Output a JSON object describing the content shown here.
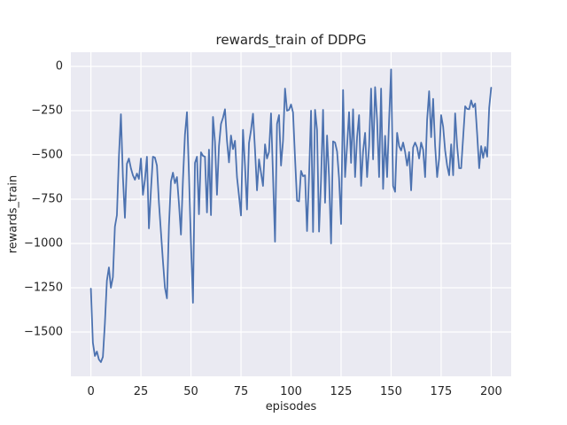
{
  "figure": {
    "title": "rewards_train of DDPG",
    "xlabel": "episodes",
    "ylabel": "rewards_train"
  },
  "colors": {
    "figure_bg": "#ffffff",
    "axes_bg": "#eaeaf2",
    "grid": "#ffffff",
    "text": "#262626",
    "line": "#4c72b0"
  },
  "chart_data": {
    "type": "line",
    "title": "rewards_train of DDPG",
    "xlabel": "episodes",
    "ylabel": "rewards_train",
    "grid": true,
    "legend": false,
    "x_ticks": [
      0,
      25,
      50,
      75,
      100,
      125,
      150,
      175,
      200
    ],
    "y_ticks": [
      0,
      -250,
      -500,
      -750,
      -1000,
      -1250,
      -1500
    ],
    "xlim": [
      -10,
      210
    ],
    "ylim": [
      -1750,
      80
    ],
    "series": [
      {
        "name": "rewards_train",
        "color": "#4c72b0",
        "x_start": 0,
        "x_step": 1,
        "values": [
          -1255,
          -1560,
          -1635,
          -1610,
          -1655,
          -1670,
          -1640,
          -1450,
          -1210,
          -1135,
          -1250,
          -1190,
          -905,
          -840,
          -510,
          -270,
          -625,
          -855,
          -550,
          -520,
          -575,
          -615,
          -640,
          -605,
          -635,
          -520,
          -725,
          -640,
          -510,
          -915,
          -700,
          -510,
          -515,
          -560,
          -770,
          -935,
          -1100,
          -1250,
          -1310,
          -900,
          -650,
          -600,
          -660,
          -625,
          -775,
          -950,
          -640,
          -385,
          -258,
          -610,
          -1000,
          -1335,
          -545,
          -510,
          -835,
          -485,
          -505,
          -510,
          -825,
          -470,
          -840,
          -285,
          -425,
          -725,
          -450,
          -325,
          -290,
          -242,
          -420,
          -542,
          -390,
          -467,
          -420,
          -625,
          -730,
          -842,
          -358,
          -560,
          -808,
          -433,
          -360,
          -267,
          -470,
          -700,
          -525,
          -600,
          -675,
          -440,
          -520,
          -483,
          -265,
          -620,
          -990,
          -325,
          -275,
          -560,
          -420,
          -125,
          -250,
          -245,
          -215,
          -260,
          -517,
          -758,
          -762,
          -590,
          -620,
          -615,
          -930,
          -620,
          -250,
          -935,
          -245,
          -358,
          -933,
          -640,
          -245,
          -770,
          -390,
          -625,
          -1000,
          -423,
          -430,
          -480,
          -633,
          -890,
          -133,
          -625,
          -450,
          -258,
          -545,
          -242,
          -625,
          -400,
          -275,
          -675,
          -480,
          -375,
          -625,
          -450,
          -125,
          -525,
          -117,
          -300,
          -625,
          -125,
          -692,
          -392,
          -625,
          -300,
          -17,
          -675,
          -708,
          -375,
          -450,
          -475,
          -430,
          -483,
          -560,
          -483,
          -700,
          -458,
          -430,
          -458,
          -520,
          -430,
          -470,
          -625,
          -300,
          -140,
          -400,
          -183,
          -450,
          -625,
          -520,
          -275,
          -340,
          -475,
          -560,
          -615,
          -440,
          -615,
          -265,
          -450,
          -575,
          -575,
          -400,
          -225,
          -240,
          -242,
          -192,
          -230,
          -210,
          -383,
          -575,
          -450,
          -517,
          -455,
          -510,
          -235,
          -120
        ]
      }
    ]
  }
}
